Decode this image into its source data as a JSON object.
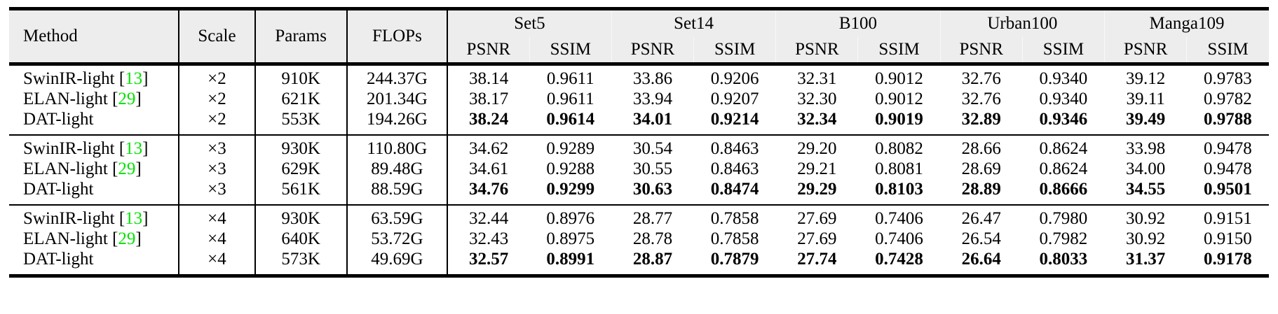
{
  "table": {
    "header": {
      "method": "Method",
      "scale": "Scale",
      "params": "Params",
      "flops": "FLOPs",
      "datasets": [
        "Set5",
        "Set14",
        "B100",
        "Urban100",
        "Manga109"
      ],
      "metrics": [
        "PSNR",
        "SSIM"
      ]
    },
    "groups": [
      {
        "scale": "×2",
        "rows": [
          {
            "method": "SwinIR-light",
            "cite": "13",
            "scale": "×2",
            "params": "910K",
            "flops": "244.37G",
            "bold": false,
            "values": [
              "38.14",
              "0.9611",
              "33.86",
              "0.9206",
              "32.31",
              "0.9012",
              "32.76",
              "0.9340",
              "39.12",
              "0.9783"
            ]
          },
          {
            "method": "ELAN-light",
            "cite": "29",
            "scale": "×2",
            "params": "621K",
            "flops": "201.34G",
            "bold": false,
            "values": [
              "38.17",
              "0.9611",
              "33.94",
              "0.9207",
              "32.30",
              "0.9012",
              "32.76",
              "0.9340",
              "39.11",
              "0.9782"
            ]
          },
          {
            "method": "DAT-light",
            "cite": "",
            "scale": "×2",
            "params": "553K",
            "flops": "194.26G",
            "bold": true,
            "values": [
              "38.24",
              "0.9614",
              "34.01",
              "0.9214",
              "32.34",
              "0.9019",
              "32.89",
              "0.9346",
              "39.49",
              "0.9788"
            ]
          }
        ]
      },
      {
        "scale": "×3",
        "rows": [
          {
            "method": "SwinIR-light",
            "cite": "13",
            "scale": "×3",
            "params": "930K",
            "flops": "110.80G",
            "bold": false,
            "values": [
              "34.62",
              "0.9289",
              "30.54",
              "0.8463",
              "29.20",
              "0.8082",
              "28.66",
              "0.8624",
              "33.98",
              "0.9478"
            ]
          },
          {
            "method": "ELAN-light",
            "cite": "29",
            "scale": "×3",
            "params": "629K",
            "flops": "89.48G",
            "bold": false,
            "values": [
              "34.61",
              "0.9288",
              "30.55",
              "0.8463",
              "29.21",
              "0.8081",
              "28.69",
              "0.8624",
              "34.00",
              "0.9478"
            ]
          },
          {
            "method": "DAT-light",
            "cite": "",
            "scale": "×3",
            "params": "561K",
            "flops": "88.59G",
            "bold": true,
            "values": [
              "34.76",
              "0.9299",
              "30.63",
              "0.8474",
              "29.29",
              "0.8103",
              "28.89",
              "0.8666",
              "34.55",
              "0.9501"
            ]
          }
        ]
      },
      {
        "scale": "×4",
        "rows": [
          {
            "method": "SwinIR-light",
            "cite": "13",
            "scale": "×4",
            "params": "930K",
            "flops": "63.59G",
            "bold": false,
            "values": [
              "32.44",
              "0.8976",
              "28.77",
              "0.7858",
              "27.69",
              "0.7406",
              "26.47",
              "0.7980",
              "30.92",
              "0.9151"
            ]
          },
          {
            "method": "ELAN-light",
            "cite": "29",
            "scale": "×4",
            "params": "640K",
            "flops": "53.72G",
            "bold": false,
            "values": [
              "32.43",
              "0.8975",
              "28.78",
              "0.7858",
              "27.69",
              "0.7406",
              "26.54",
              "0.7982",
              "30.92",
              "0.9150"
            ]
          },
          {
            "method": "DAT-light",
            "cite": "",
            "scale": "×4",
            "params": "573K",
            "flops": "49.69G",
            "bold": true,
            "values": [
              "32.57",
              "0.8991",
              "28.87",
              "0.7879",
              "27.74",
              "0.7428",
              "26.64",
              "0.8033",
              "31.37",
              "0.9178"
            ]
          }
        ]
      }
    ],
    "colors": {
      "citation_green": "#00E400",
      "header_bg": "#EDEDED",
      "rule_black": "#000000"
    }
  }
}
